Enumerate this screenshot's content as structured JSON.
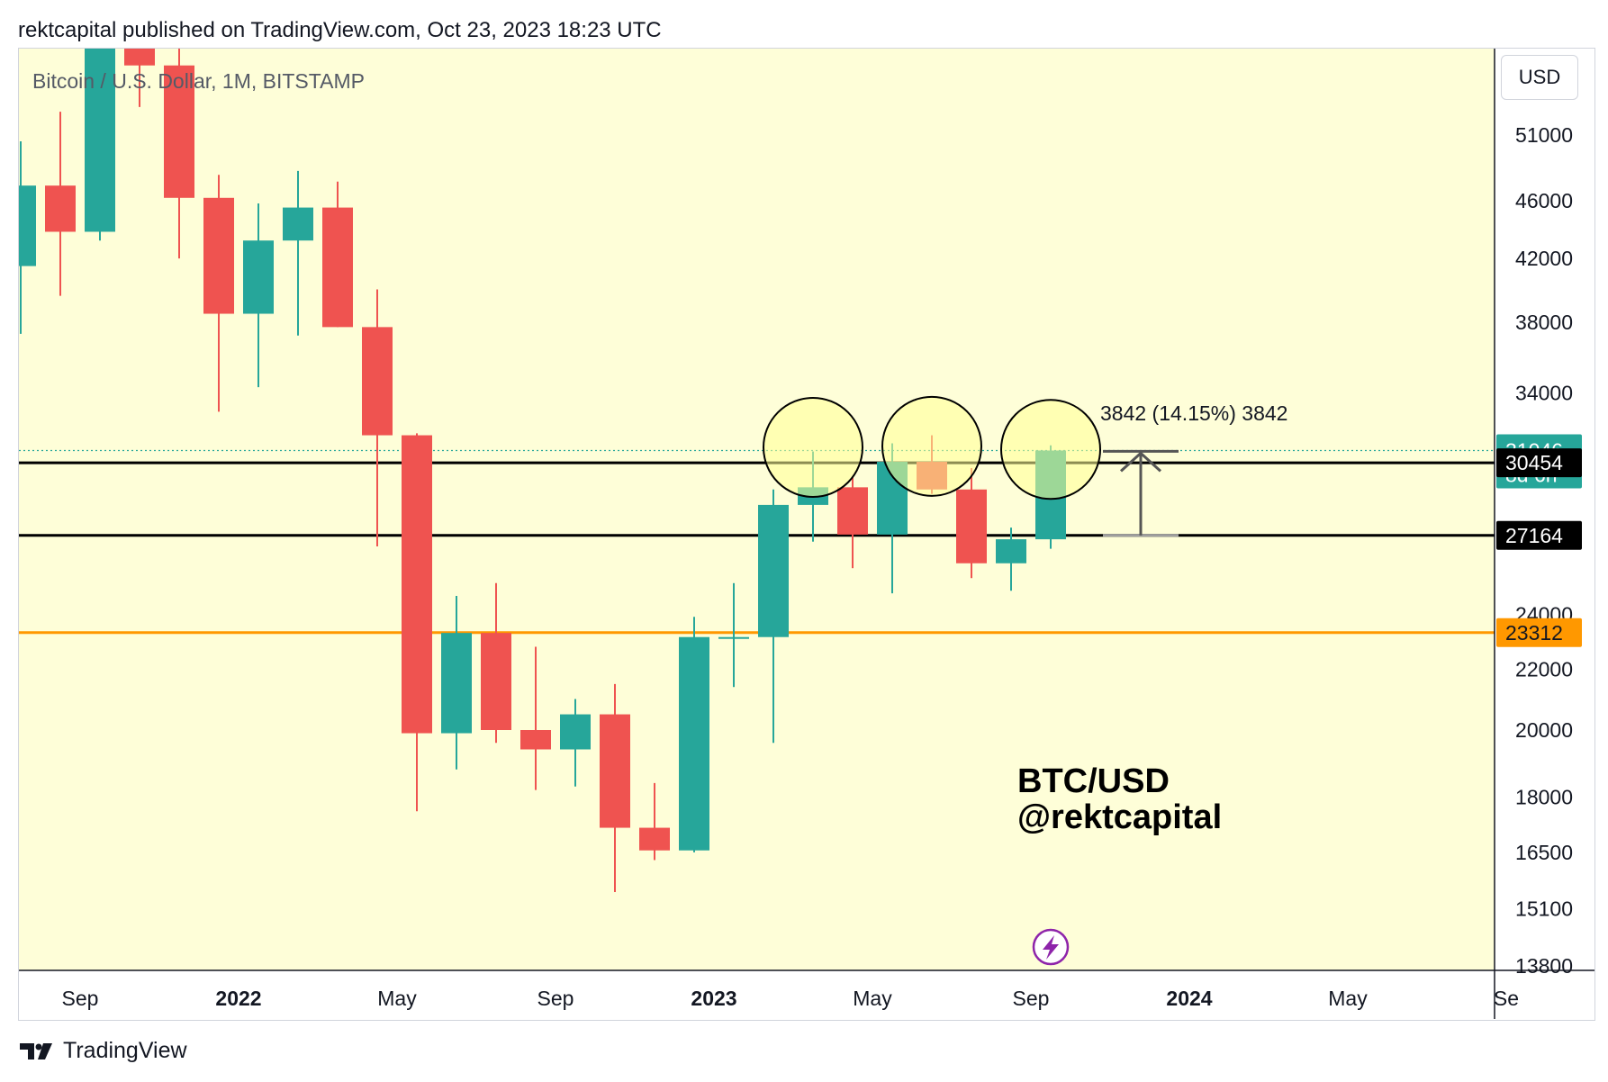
{
  "header": {
    "published_text": "rektcapital published on TradingView.com, Oct 23, 2023 18:23 UTC"
  },
  "footer": {
    "brand": "TradingView"
  },
  "toolbar": {
    "currency": "USD"
  },
  "colors": {
    "background": "#fefed8",
    "up": "#26a69a",
    "down": "#ef5350",
    "support_orange": "#f7931a",
    "axis_text": "#131722",
    "lightning": "#8e24aa"
  },
  "chart_data": {
    "type": "candlestick",
    "symbol_label": "Bitcoin / U.S. Dollar, 1M, BITSTAMP",
    "y_scale": "log",
    "ylim": [
      13000,
      60000
    ],
    "y_ticks": [
      51000,
      46000,
      42000,
      38000,
      34000,
      24000,
      22000,
      20000,
      18000,
      16500,
      15100,
      13800
    ],
    "x_ticks": [
      {
        "label": "Sep",
        "month": "2021-09",
        "bold": false
      },
      {
        "label": "2022",
        "month": "2022-01",
        "bold": true
      },
      {
        "label": "May",
        "month": "2022-05",
        "bold": false
      },
      {
        "label": "Sep",
        "month": "2022-09",
        "bold": false
      },
      {
        "label": "2023",
        "month": "2023-01",
        "bold": true
      },
      {
        "label": "May",
        "month": "2023-05",
        "bold": false
      },
      {
        "label": "Sep",
        "month": "2023-09",
        "bold": false
      },
      {
        "label": "2024",
        "month": "2024-01",
        "bold": true
      },
      {
        "label": "May",
        "month": "2024-05",
        "bold": false
      },
      {
        "label": "Se",
        "month": "2024-09",
        "bold": false
      }
    ],
    "candles": [
      {
        "month": "2021-08",
        "open": 41500,
        "high": 50500,
        "low": 37300,
        "close": 47100
      },
      {
        "month": "2021-09",
        "open": 47100,
        "high": 52900,
        "low": 39600,
        "close": 43800
      },
      {
        "month": "2021-10",
        "open": 43800,
        "high": 67000,
        "low": 43200,
        "close": 61300
      },
      {
        "month": "2021-11",
        "open": 61300,
        "high": 69000,
        "low": 53300,
        "close": 56900
      },
      {
        "month": "2021-12",
        "open": 56900,
        "high": 59000,
        "low": 42000,
        "close": 46200
      },
      {
        "month": "2022-01",
        "open": 46200,
        "high": 47900,
        "low": 33000,
        "close": 38500
      },
      {
        "month": "2022-02",
        "open": 38500,
        "high": 45800,
        "low": 34300,
        "close": 43200
      },
      {
        "month": "2022-03",
        "open": 43200,
        "high": 48200,
        "low": 37200,
        "close": 45500
      },
      {
        "month": "2022-04",
        "open": 45500,
        "high": 47400,
        "low": 37700,
        "close": 37700
      },
      {
        "month": "2022-05",
        "open": 37700,
        "high": 40000,
        "low": 26700,
        "close": 31800
      },
      {
        "month": "2022-06",
        "open": 31800,
        "high": 31900,
        "low": 17600,
        "close": 19900
      },
      {
        "month": "2022-07",
        "open": 19900,
        "high": 24700,
        "low": 18800,
        "close": 23300
      },
      {
        "month": "2022-08",
        "open": 23300,
        "high": 25200,
        "low": 19600,
        "close": 20000
      },
      {
        "month": "2022-09",
        "open": 20000,
        "high": 22800,
        "low": 18200,
        "close": 19400
      },
      {
        "month": "2022-10",
        "open": 19400,
        "high": 21000,
        "low": 18300,
        "close": 20500
      },
      {
        "month": "2022-11",
        "open": 20500,
        "high": 21500,
        "low": 15500,
        "close": 17150
      },
      {
        "month": "2022-12",
        "open": 17150,
        "high": 18400,
        "low": 16300,
        "close": 16550
      },
      {
        "month": "2023-01",
        "open": 16550,
        "high": 23900,
        "low": 16500,
        "close": 23150
      },
      {
        "month": "2023-02",
        "open": 23150,
        "high": 25200,
        "low": 21400,
        "close": 23150
      },
      {
        "month": "2023-03",
        "open": 23150,
        "high": 29200,
        "low": 19600,
        "close": 28500
      },
      {
        "month": "2023-04",
        "open": 28500,
        "high": 31000,
        "low": 26900,
        "close": 29300
      },
      {
        "month": "2023-05",
        "open": 29300,
        "high": 29800,
        "low": 25800,
        "close": 27200
      },
      {
        "month": "2023-06",
        "open": 27200,
        "high": 31400,
        "low": 24800,
        "close": 30500
      },
      {
        "month": "2023-07",
        "open": 30500,
        "high": 31800,
        "low": 29000,
        "close": 29200
      },
      {
        "month": "2023-08",
        "open": 29200,
        "high": 30200,
        "low": 25400,
        "close": 26000
      },
      {
        "month": "2023-09",
        "open": 26000,
        "high": 27500,
        "low": 24900,
        "close": 27000
      },
      {
        "month": "2023-10",
        "open": 27000,
        "high": 31300,
        "low": 26600,
        "close": 31046
      }
    ],
    "horizontal_lines": [
      {
        "price": 30454,
        "color": "#000000",
        "width": 3,
        "label": "30454",
        "label_bg": "#000000"
      },
      {
        "price": 27164,
        "color": "#000000",
        "width": 3,
        "label": "27164",
        "label_bg": "#000000"
      },
      {
        "price": 23312,
        "color": "#ff9800",
        "width": 3,
        "label": "23312",
        "label_bg": "#ff9800"
      }
    ],
    "last_price": {
      "value": "31046",
      "countdown": "8d 6h",
      "bg": "#26a69a"
    },
    "circles": [
      {
        "month": "2023-04",
        "price": 31200
      },
      {
        "month": "2023-07",
        "price": 31250
      },
      {
        "month": "2023-10",
        "price": 31100
      }
    ],
    "measure": {
      "label": "3842 (14.15%) 3842",
      "from_price": 27164,
      "to_price": 31006,
      "start_month": "2023-11",
      "end_month": "2024-01"
    },
    "watermark": {
      "line1": "BTC/USD",
      "line2": "@rektcapital"
    }
  }
}
